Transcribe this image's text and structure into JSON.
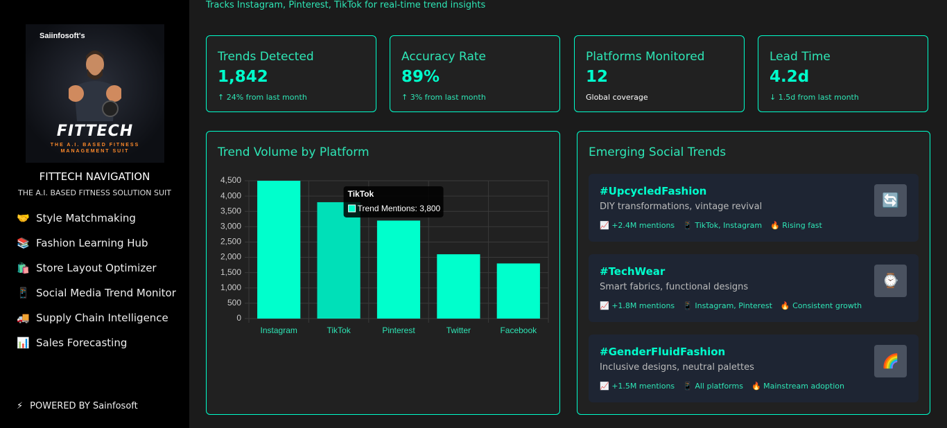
{
  "header": {
    "subtitle": "Tracks Instagram, Pinterest, TikTok for real-time trend insights"
  },
  "sidebar": {
    "logo": {
      "brand": "Saiinfosoft's",
      "name": "FITTECH",
      "tagline": "THE A.I. BASED FITNESS MANAGEMENT SUIT"
    },
    "title": "FITTECH NAVIGATION",
    "subtitle": "THE A.I. BASED FITNESS SOLUTION SUIT",
    "nav": [
      {
        "icon": "🤝",
        "label": "Style Matchmaking"
      },
      {
        "icon": "📚",
        "label": "Fashion Learning Hub"
      },
      {
        "icon": "🛍️",
        "label": "Store Layout Optimizer"
      },
      {
        "icon": "📱",
        "label": "Social Media Trend Monitor"
      },
      {
        "icon": "🚚",
        "label": "Supply Chain Intelligence"
      },
      {
        "icon": "📊",
        "label": "Sales Forecasting"
      }
    ],
    "footer": {
      "icon": "⚡",
      "label": "POWERED BY Sainfosoft"
    }
  },
  "stats": [
    {
      "label": "Trends Detected",
      "value": "1,842",
      "note": "↑ 24% from last month"
    },
    {
      "label": "Accuracy Rate",
      "value": "89%",
      "note": "↑ 3% from last month"
    },
    {
      "label": "Platforms Monitored",
      "value": "12",
      "note": "Global coverage"
    },
    {
      "label": "Lead Time",
      "value": "4.2d",
      "note": "↓ 1.5d from last month"
    }
  ],
  "chart_data": {
    "type": "bar",
    "title": "Trend Volume by Platform",
    "categories": [
      "Instagram",
      "TikTok",
      "Pinterest",
      "Twitter",
      "Facebook"
    ],
    "values": [
      4500,
      3800,
      3200,
      2100,
      1800
    ],
    "color": "#00ffcc",
    "highlight_color": "#00e0b8",
    "ylim": [
      0,
      4500
    ],
    "yticks": [
      0,
      500,
      {
        "value": 1000,
        "label": "1,000"
      },
      {
        "value": 1500,
        "label": "1,500"
      },
      {
        "value": 2000,
        "label": "2,000"
      },
      {
        "value": 2500,
        "label": "2,500"
      },
      {
        "value": 3000,
        "label": "3,000"
      },
      {
        "value": 3500,
        "label": "3,500"
      },
      {
        "value": 4000,
        "label": "4,000"
      },
      {
        "value": 4500,
        "label": "4,500"
      }
    ],
    "grid": true,
    "tooltip": {
      "title": "TikTok",
      "text": "Trend Mentions: 3,800"
    }
  },
  "trends": {
    "title": "Emerging Social Trends",
    "items": [
      {
        "tag": "#UpcycledFashion",
        "description": "DIY transformations, vintage revival",
        "icon": "🔄",
        "meta": [
          "📈 +2.4M mentions",
          "📱 TikTok, Instagram",
          "🔥 Rising fast"
        ]
      },
      {
        "tag": "#TechWear",
        "description": "Smart fabrics, functional designs",
        "icon": "⌚",
        "meta": [
          "📈 +1.8M mentions",
          "📱 Instagram, Pinterest",
          "🔥 Consistent growth"
        ]
      },
      {
        "tag": "#GenderFluidFashion",
        "description": "Inclusive designs, neutral palettes",
        "icon": "🌈",
        "meta": [
          "📈 +1.5M mentions",
          "📱 All platforms",
          "🔥 Mainstream adoption"
        ]
      }
    ]
  }
}
